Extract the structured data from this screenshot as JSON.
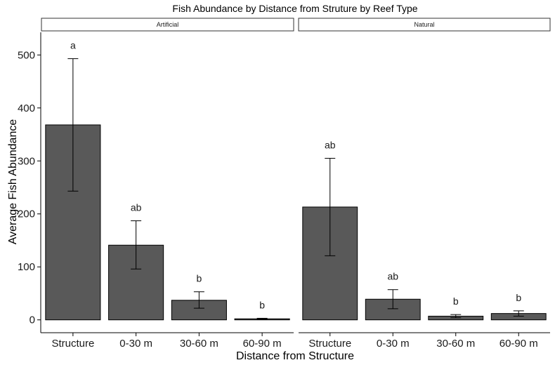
{
  "chart_data": {
    "type": "bar",
    "title": "Fish Abundance by Distance from Struture by Reef Type",
    "xlabel": "Distance from Structure",
    "ylabel": "Average Fish Abundance",
    "categories": [
      "Structure",
      "0-30 m",
      "30-60 m",
      "60-90 m"
    ],
    "ylim": [
      -25,
      545
    ],
    "yticks": [
      0,
      100,
      200,
      300,
      400,
      500
    ],
    "grid": false,
    "colors": {
      "bar_fill": "#595959",
      "bar_stroke": "#000000",
      "error_bar": "#000000"
    },
    "panels": [
      {
        "name": "Artificial",
        "values": [
          368,
          141,
          37,
          2
        ],
        "error_low": [
          243,
          96,
          22,
          1
        ],
        "error_high": [
          493,
          187,
          53,
          3
        ],
        "labels": [
          "a",
          "ab",
          "b",
          "b"
        ]
      },
      {
        "name": "Natural",
        "values": [
          213,
          39,
          7,
          12
        ],
        "error_low": [
          121,
          21,
          4,
          7
        ],
        "error_high": [
          305,
          57,
          10,
          17
        ],
        "labels": [
          "ab",
          "ab",
          "b",
          "b"
        ]
      }
    ]
  }
}
